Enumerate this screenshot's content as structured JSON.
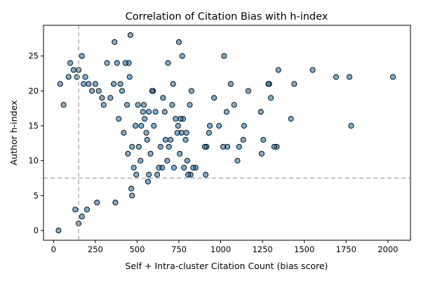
{
  "chart_data": {
    "type": "scatter",
    "title": "Correlation of Citation Bias with h-index",
    "xlabel": "Self + Intra-cluster Citation Count (bias score)",
    "ylabel": "Author h-index",
    "xlim": [
      -60,
      2135
    ],
    "ylim": [
      -1.4,
      29.4
    ],
    "xticks": [
      0,
      250,
      500,
      750,
      1000,
      1250,
      1500,
      1750,
      2000
    ],
    "yticks": [
      0,
      5,
      10,
      15,
      20,
      25
    ],
    "grid": false,
    "legend": "none",
    "marker_color": "#1f77b4",
    "marker_edge": "#000000",
    "reference_lines": [
      {
        "orientation": "vertical",
        "x": 150,
        "color": "#aaaaaa",
        "style": "dashed"
      },
      {
        "orientation": "horizontal",
        "y": 7.5,
        "color": "#aaaaaa",
        "style": "dashed"
      }
    ],
    "outliers": [
      {
        "x": 2030,
        "y": 22
      },
      {
        "x": 1780,
        "y": 15
      },
      {
        "x": 1770,
        "y": 22
      },
      {
        "x": 1690,
        "y": 22
      },
      {
        "x": 1550,
        "y": 23
      },
      {
        "x": 1440,
        "y": 21
      },
      {
        "x": 1420,
        "y": 16
      },
      {
        "x": 1345,
        "y": 23
      },
      {
        "x": 1335,
        "y": 12
      },
      {
        "x": 1320,
        "y": 12
      },
      {
        "x": 1300,
        "y": 19
      },
      {
        "x": 1290,
        "y": 21
      },
      {
        "x": 1285,
        "y": 21
      },
      {
        "x": 1255,
        "y": 13
      },
      {
        "x": 1245,
        "y": 11
      },
      {
        "x": 1240,
        "y": 17
      },
      {
        "x": 1165,
        "y": 20
      },
      {
        "x": 1140,
        "y": 15
      },
      {
        "x": 1135,
        "y": 13
      },
      {
        "x": 1110,
        "y": 12
      },
      {
        "x": 1100,
        "y": 10
      },
      {
        "x": 1080,
        "y": 18
      },
      {
        "x": 1060,
        "y": 21
      },
      {
        "x": 1040,
        "y": 12
      },
      {
        "x": 1035,
        "y": 17
      },
      {
        "x": 1020,
        "y": 25
      },
      {
        "x": 1015,
        "y": 12
      },
      {
        "x": 990,
        "y": 15
      },
      {
        "x": 960,
        "y": 19
      },
      {
        "x": 935,
        "y": 15
      },
      {
        "x": 930,
        "y": 14
      },
      {
        "x": 915,
        "y": 12
      },
      {
        "x": 910,
        "y": 8
      },
      {
        "x": 905,
        "y": 12
      },
      {
        "x": 850,
        "y": 9
      },
      {
        "x": 835,
        "y": 9
      },
      {
        "x": 825,
        "y": 20
      },
      {
        "x": 820,
        "y": 8
      },
      {
        "x": 815,
        "y": 18
      },
      {
        "x": 805,
        "y": 8
      },
      {
        "x": 800,
        "y": 10
      },
      {
        "x": 795,
        "y": 14
      },
      {
        "x": 790,
        "y": 13
      },
      {
        "x": 780,
        "y": 9
      },
      {
        "x": 775,
        "y": 16
      },
      {
        "x": 770,
        "y": 25
      },
      {
        "x": 765,
        "y": 14
      },
      {
        "x": 760,
        "y": 16
      },
      {
        "x": 755,
        "y": 11
      },
      {
        "x": 750,
        "y": 27
      },
      {
        "x": 745,
        "y": 15
      },
      {
        "x": 740,
        "y": 14
      },
      {
        "x": 730,
        "y": 16
      },
      {
        "x": 720,
        "y": 9
      },
      {
        "x": 715,
        "y": 21
      },
      {
        "x": 710,
        "y": 18
      },
      {
        "x": 700,
        "y": 13
      },
      {
        "x": 690,
        "y": 12
      },
      {
        "x": 685,
        "y": 24
      },
      {
        "x": 680,
        "y": 10
      },
      {
        "x": 670,
        "y": 13
      },
      {
        "x": 665,
        "y": 17
      },
      {
        "x": 655,
        "y": 19
      },
      {
        "x": 650,
        "y": 9
      },
      {
        "x": 640,
        "y": 12
      },
      {
        "x": 630,
        "y": 9
      },
      {
        "x": 620,
        "y": 8
      },
      {
        "x": 610,
        "y": 17
      },
      {
        "x": 600,
        "y": 15
      },
      {
        "x": 595,
        "y": 20
      },
      {
        "x": 590,
        "y": 20
      },
      {
        "x": 580,
        "y": 11
      },
      {
        "x": 570,
        "y": 17
      },
      {
        "x": 565,
        "y": 7
      },
      {
        "x": 560,
        "y": 13
      },
      {
        "x": 555,
        "y": 14
      },
      {
        "x": 545,
        "y": 16
      },
      {
        "x": 540,
        "y": 18
      },
      {
        "x": 535,
        "y": 17
      },
      {
        "x": 525,
        "y": 15
      },
      {
        "x": 520,
        "y": 10
      },
      {
        "x": 510,
        "y": 12
      },
      {
        "x": 505,
        "y": 18
      },
      {
        "x": 495,
        "y": 8
      },
      {
        "x": 490,
        "y": 15
      },
      {
        "x": 480,
        "y": 9
      },
      {
        "x": 470,
        "y": 12
      },
      {
        "x": 460,
        "y": 28
      },
      {
        "x": 455,
        "y": 22
      },
      {
        "x": 450,
        "y": 24
      },
      {
        "x": 445,
        "y": 11
      },
      {
        "x": 440,
        "y": 18
      },
      {
        "x": 430,
        "y": 24
      },
      {
        "x": 420,
        "y": 14
      },
      {
        "x": 410,
        "y": 20
      },
      {
        "x": 400,
        "y": 21
      },
      {
        "x": 390,
        "y": 16
      },
      {
        "x": 380,
        "y": 24
      },
      {
        "x": 365,
        "y": 27
      },
      {
        "x": 360,
        "y": 21
      },
      {
        "x": 340,
        "y": 19
      },
      {
        "x": 320,
        "y": 24
      },
      {
        "x": 300,
        "y": 18
      },
      {
        "x": 290,
        "y": 19
      },
      {
        "x": 270,
        "y": 20
      },
      {
        "x": 250,
        "y": 21
      },
      {
        "x": 230,
        "y": 20
      },
      {
        "x": 210,
        "y": 21
      },
      {
        "x": 190,
        "y": 22
      },
      {
        "x": 180,
        "y": 21
      },
      {
        "x": 170,
        "y": 25
      },
      {
        "x": 150,
        "y": 23
      },
      {
        "x": 140,
        "y": 22
      },
      {
        "x": 120,
        "y": 23
      },
      {
        "x": 100,
        "y": 24
      },
      {
        "x": 90,
        "y": 22
      },
      {
        "x": 60,
        "y": 18
      },
      {
        "x": 40,
        "y": 21
      },
      {
        "x": 30,
        "y": 0
      },
      {
        "x": 150,
        "y": 1
      },
      {
        "x": 130,
        "y": 3
      },
      {
        "x": 170,
        "y": 2
      },
      {
        "x": 200,
        "y": 3
      },
      {
        "x": 260,
        "y": 4
      },
      {
        "x": 370,
        "y": 4
      },
      {
        "x": 470,
        "y": 5
      },
      {
        "x": 465,
        "y": 6
      },
      {
        "x": 570,
        "y": 8
      }
    ]
  }
}
